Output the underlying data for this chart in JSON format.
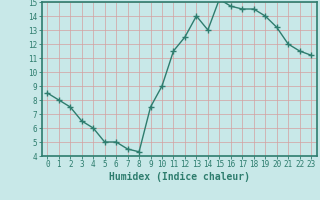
{
  "x": [
    0,
    1,
    2,
    3,
    4,
    5,
    6,
    7,
    8,
    9,
    10,
    11,
    12,
    13,
    14,
    15,
    16,
    17,
    18,
    19,
    20,
    21,
    22,
    23
  ],
  "y": [
    8.5,
    8.0,
    7.5,
    6.5,
    6.0,
    5.0,
    5.0,
    4.5,
    4.3,
    7.5,
    9.0,
    11.5,
    12.5,
    14.0,
    13.0,
    15.2,
    14.7,
    14.5,
    14.5,
    14.0,
    13.2,
    12.0,
    11.5,
    11.2
  ],
  "line_color": "#2e7d6e",
  "marker": "+",
  "marker_size": 4,
  "bg_color": "#c8e8e8",
  "grid_color": "#d4a0a0",
  "xlabel": "Humidex (Indice chaleur)",
  "ylim": [
    4,
    15
  ],
  "xlim": [
    -0.5,
    23.5
  ],
  "yticks": [
    4,
    5,
    6,
    7,
    8,
    9,
    10,
    11,
    12,
    13,
    14,
    15
  ],
  "xticks": [
    0,
    1,
    2,
    3,
    4,
    5,
    6,
    7,
    8,
    9,
    10,
    11,
    12,
    13,
    14,
    15,
    16,
    17,
    18,
    19,
    20,
    21,
    22,
    23
  ],
  "tick_color": "#2e7d6e",
  "axis_color": "#2e7d6e",
  "xlabel_fontsize": 7.0,
  "tick_fontsize": 5.5,
  "linewidth": 1.0,
  "spine_linewidth": 1.2
}
